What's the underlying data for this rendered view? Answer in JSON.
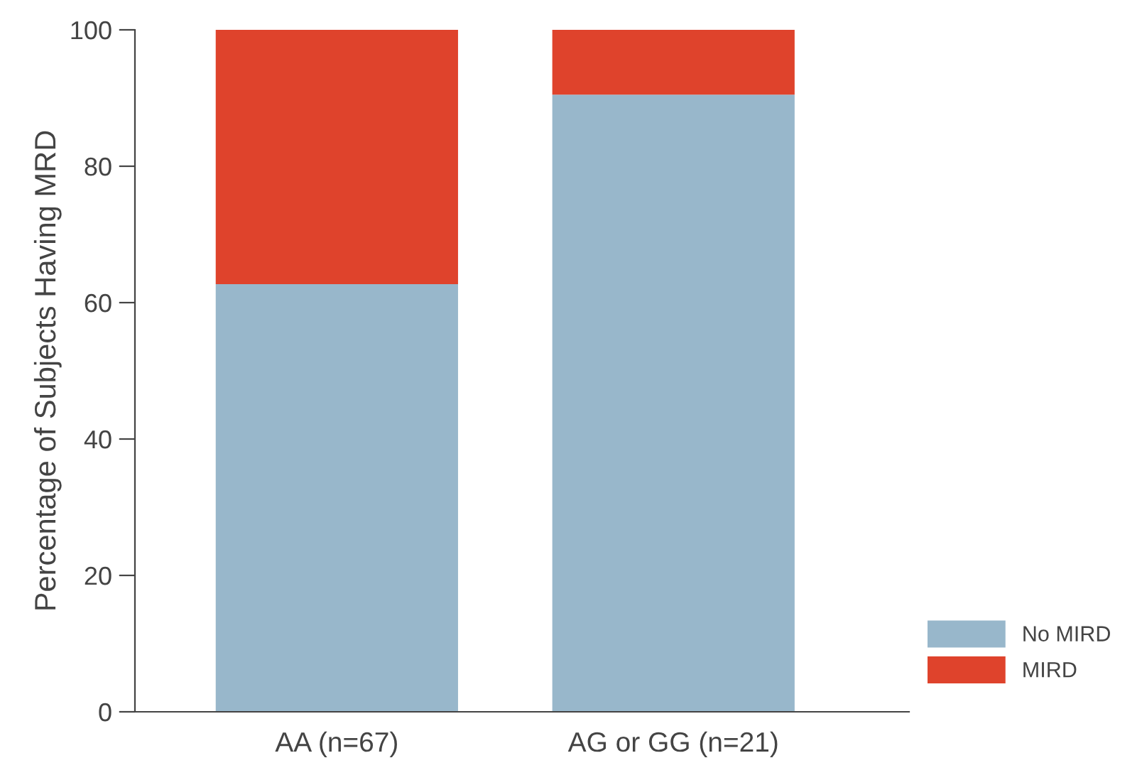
{
  "chart_data": {
    "type": "bar",
    "stacked": true,
    "ylabel": "Percentage of Subjects Having MRD",
    "categories": [
      "AA (n=67)",
      "AG or GG (n=21)"
    ],
    "series": [
      {
        "name": "No MIRD",
        "color": "#98b7cb",
        "values": [
          62.7,
          90.5
        ]
      },
      {
        "name": "MIRD",
        "color": "#df432c",
        "values": [
          37.3,
          9.5
        ]
      }
    ],
    "ylim": [
      0,
      100
    ],
    "yticks": [
      0,
      20,
      40,
      60,
      80,
      100
    ],
    "grid": false,
    "legend": "bottom right"
  }
}
